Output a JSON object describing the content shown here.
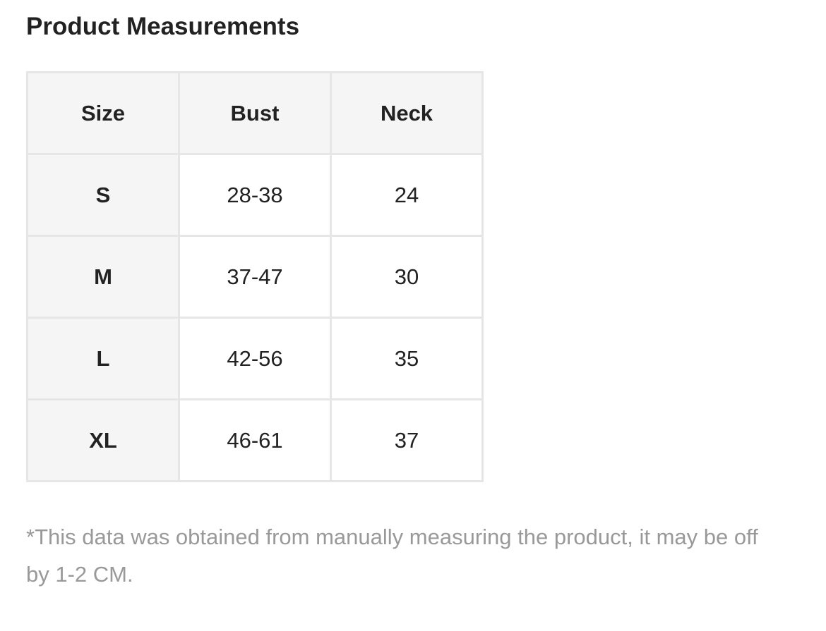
{
  "title": "Product Measurements",
  "table": {
    "headers": [
      "Size",
      "Bust",
      "Neck"
    ],
    "rows": [
      [
        "S",
        "28-38",
        "24"
      ],
      [
        "M",
        "37-47",
        "30"
      ],
      [
        "L",
        "42-56",
        "35"
      ],
      [
        "XL",
        "46-61",
        "37"
      ]
    ]
  },
  "footnote": "*This data was obtained from manually measuring the product, it may be off by 1-2 CM."
}
